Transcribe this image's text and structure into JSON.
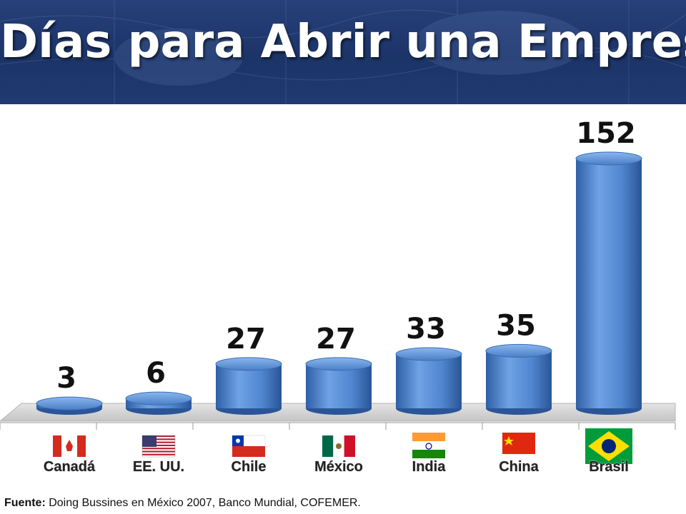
{
  "header": {
    "title": "Días para Abrir una Empresa"
  },
  "chart_data": {
    "type": "bar",
    "title": "Días para Abrir una Empresa",
    "categories": [
      "Canadá",
      "EE. UU.",
      "Chile",
      "México",
      "India",
      "China",
      "Brasil"
    ],
    "values": [
      3,
      6,
      27,
      27,
      33,
      35,
      152
    ],
    "value_labels": [
      "3",
      "6",
      "27",
      "27",
      "33",
      "35",
      "152"
    ],
    "flag_icons": [
      "canada-flag-icon",
      "usa-flag-icon",
      "chile-flag-icon",
      "mexico-flag-icon",
      "india-flag-icon",
      "china-flag-icon",
      "brazil-flag-icon"
    ],
    "xlabel": "",
    "ylabel": "",
    "ylim": [
      0,
      160
    ],
    "grid": false,
    "legend": "none",
    "bar_color": "#4f86cf"
  },
  "footer": {
    "source_label": "Fuente:",
    "source_text": " Doing Bussines en México 2007, Banco Mundial, COFEMER."
  },
  "colors": {
    "header_bg": "#1f3a70",
    "title": "#ffffff",
    "bar": "#4f86cf"
  }
}
